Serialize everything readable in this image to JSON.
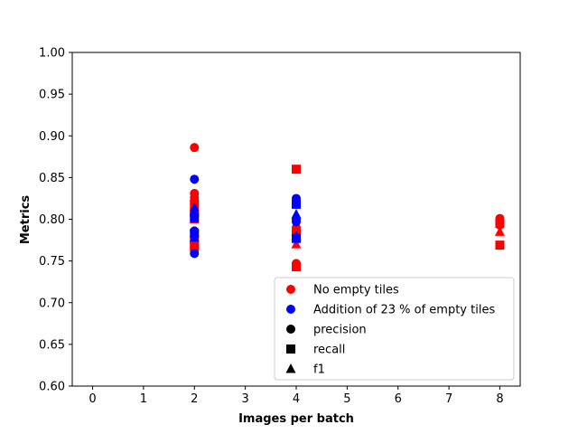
{
  "chart_data": {
    "type": "scatter",
    "title": "",
    "xlabel": "Images per batch",
    "ylabel": "Metrics",
    "xlim": [
      -0.4,
      8.4
    ],
    "ylim": [
      0.6,
      1.0
    ],
    "xticks": [
      0,
      1,
      2,
      3,
      4,
      5,
      6,
      7,
      8
    ],
    "yticks": [
      "0.60",
      "0.65",
      "0.70",
      "0.75",
      "0.80",
      "0.85",
      "0.90",
      "0.95",
      "1.00"
    ],
    "grid": false,
    "legend_placement": "lower-right",
    "colors": {
      "no_empty": "#ff0000",
      "with_empty": "#0000ff",
      "neutral": "#000000"
    },
    "legend": [
      {
        "label": "No empty tiles",
        "color": "#ff0000",
        "marker": "circle"
      },
      {
        "label": "Addition of 23 % of empty tiles",
        "color": "#0000ff",
        "marker": "circle"
      },
      {
        "label": "precision",
        "color": "#000000",
        "marker": "circle"
      },
      {
        "label": "recall",
        "color": "#000000",
        "marker": "square"
      },
      {
        "label": "f1",
        "color": "#000000",
        "marker": "triangle"
      }
    ],
    "series": [
      {
        "group": "no_empty",
        "metric": "precision",
        "x": [
          2,
          2,
          2,
          2,
          2,
          2,
          4,
          4,
          4,
          8,
          8,
          8
        ],
        "y": [
          0.886,
          0.831,
          0.826,
          0.822,
          0.768,
          0.763,
          0.747,
          0.744,
          0.79,
          0.801,
          0.797,
          0.793
        ]
      },
      {
        "group": "no_empty",
        "metric": "recall",
        "x": [
          2,
          2,
          2,
          2,
          4,
          4,
          4,
          8,
          8
        ],
        "y": [
          0.818,
          0.808,
          0.775,
          0.768,
          0.86,
          0.783,
          0.743,
          0.795,
          0.769
        ]
      },
      {
        "group": "no_empty",
        "metric": "f1",
        "x": [
          2,
          2,
          2,
          4,
          4,
          8
        ],
        "y": [
          0.812,
          0.8,
          0.77,
          0.77,
          0.785,
          0.785
        ]
      },
      {
        "group": "with_empty",
        "metric": "precision",
        "x": [
          2,
          2,
          2,
          2,
          4,
          4,
          4,
          4
        ],
        "y": [
          0.848,
          0.805,
          0.786,
          0.759,
          0.825,
          0.82,
          0.8,
          0.797
        ]
      },
      {
        "group": "with_empty",
        "metric": "recall",
        "x": [
          2,
          2,
          4,
          4
        ],
        "y": [
          0.802,
          0.783,
          0.818,
          0.777
        ]
      },
      {
        "group": "with_empty",
        "metric": "f1",
        "x": [
          2,
          2,
          4,
          4
        ],
        "y": [
          0.814,
          0.778,
          0.806,
          0.78
        ]
      }
    ]
  }
}
